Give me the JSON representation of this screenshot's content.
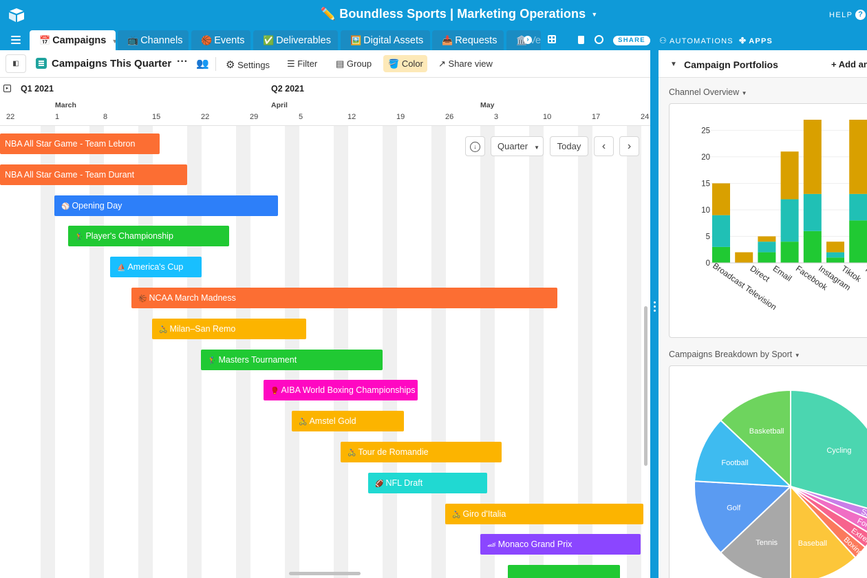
{
  "app": {
    "base_title": "✏️ Boundless Sports | Marketing Operations",
    "help": "HELP",
    "help_icon": "?"
  },
  "tabs": [
    {
      "icon": "📅",
      "label": "Campaigns",
      "active": true
    },
    {
      "icon": "📺",
      "label": "Channels"
    },
    {
      "icon": "🏀",
      "label": "Events"
    },
    {
      "icon": "✅",
      "label": "Deliverables"
    },
    {
      "icon": "🖼️",
      "label": "Digital Assets"
    },
    {
      "icon": "📥",
      "label": "Requests"
    },
    {
      "icon": "🏛️",
      "label": "Vendors"
    }
  ],
  "toolbar": {
    "share": "SHARE",
    "automations": "AUTOMATIONS",
    "apps": "APPS"
  },
  "view": {
    "name": "Campaigns This Quarter",
    "settings": "Settings",
    "filter": "Filter",
    "group": "Group",
    "color": "Color",
    "share_view": "Share view"
  },
  "timeline": {
    "quarters": [
      "Q1 2021",
      "Q2 2021"
    ],
    "months": [
      "March",
      "April",
      "May"
    ],
    "days": [
      "22",
      "1",
      "8",
      "15",
      "22",
      "29",
      "5",
      "12",
      "19",
      "26",
      "3",
      "10",
      "17",
      "24"
    ],
    "scale": "Quarter",
    "today": "Today",
    "prev": "‹",
    "next": "›",
    "campaigns": [
      {
        "emoji": "",
        "name": "NBA All Star Game - Team Lebron",
        "color": "#fc6e33"
      },
      {
        "emoji": "",
        "name": "NBA All Star Game - Team Durant",
        "color": "#fc6e33"
      },
      {
        "emoji": "⚾",
        "name": "Opening Day",
        "color": "#2d7ff9"
      },
      {
        "emoji": "🏌",
        "name": "Player's Championship",
        "color": "#20c933"
      },
      {
        "emoji": "⛵",
        "name": "America's Cup",
        "color": "#18bfff"
      },
      {
        "emoji": "🏀",
        "name": "NCAA March Madness",
        "color": "#fc6e33"
      },
      {
        "emoji": "🚴",
        "name": "Milan–San Remo",
        "color": "#fcb400"
      },
      {
        "emoji": "🏌",
        "name": "Masters Tournament",
        "color": "#20c933"
      },
      {
        "emoji": "🥊",
        "name": "AIBA World Boxing Championships",
        "color": "#ff08c2"
      },
      {
        "emoji": "🚴",
        "name": "Amstel Gold",
        "color": "#fcb400"
      },
      {
        "emoji": "🚴",
        "name": "Tour de Romandie",
        "color": "#fcb400"
      },
      {
        "emoji": "🏈",
        "name": "NFL Draft",
        "color": "#20d9d2"
      },
      {
        "emoji": "🚴",
        "name": "Giro d'Italia",
        "color": "#fcb400"
      },
      {
        "emoji": "🏎",
        "name": "Monaco Grand Prix",
        "color": "#8b46ff"
      },
      {
        "emoji": "",
        "name": "",
        "color": "#20c933"
      }
    ]
  },
  "right_panel": {
    "title": "Campaign Portfolios",
    "add": "+ Add an app",
    "chart1_label": "Channel Overview",
    "chart2_label": "Campaigns Breakdown by Sport"
  },
  "chart_data": [
    {
      "type": "bar",
      "stacked": true,
      "categories": [
        "Broadcast Television",
        "Direct",
        "Email",
        "Facebook",
        "Instagram",
        "Tiktok",
        "Twitter"
      ],
      "series": [
        {
          "values": [
            3,
            0,
            2,
            4,
            6,
            1,
            8
          ],
          "color": "#20c933"
        },
        {
          "values": [
            6,
            0,
            2,
            8,
            7,
            1,
            5
          ],
          "color": "#20c0b5"
        },
        {
          "values": [
            6,
            2,
            1,
            9,
            14,
            2,
            14
          ],
          "color": "#d9a000"
        }
      ],
      "yticks": [
        0,
        5,
        10,
        15,
        20,
        25
      ],
      "ylim": [
        0,
        27
      ]
    },
    {
      "type": "pie",
      "slices": [
        {
          "label": "Cycling",
          "value": 25,
          "color": "#4bd6b0"
        },
        {
          "label": "Sailing",
          "value": 1.5,
          "color": "#c97ee8"
        },
        {
          "label": "Formula Racing",
          "value": 2,
          "color": "#f06ec4"
        },
        {
          "label": "Extreme",
          "value": 2,
          "color": "#f7638d"
        },
        {
          "label": "Boxing",
          "value": 2,
          "color": "#fb7a5c"
        },
        {
          "label": "Baseball",
          "value": 10,
          "color": "#fcc63a"
        },
        {
          "label": "Tennis",
          "value": 11,
          "color": "#a8a8a8"
        },
        {
          "label": "Golf",
          "value": 11,
          "color": "#5a9bf2"
        },
        {
          "label": "Football",
          "value": 9.5,
          "color": "#3ebbf0"
        },
        {
          "label": "Basketball",
          "value": 11,
          "color": "#6ed45e"
        }
      ]
    }
  ]
}
